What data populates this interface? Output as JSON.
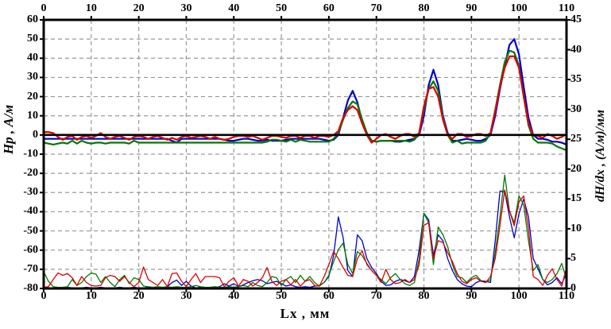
{
  "chart_data": {
    "type": "line",
    "title": "",
    "xlabel": "Lx , мм",
    "ylabel_left": "Hp , А/м",
    "ylabel_right": "dH/dx , (А/м)/мм",
    "background": "#ffffff",
    "frame_color": "#000000",
    "legend": "none",
    "x_axis": {
      "min": 0,
      "max": 110,
      "tick_step": 10,
      "ticks": [
        0,
        10,
        20,
        30,
        40,
        50,
        60,
        70,
        80,
        90,
        100,
        110
      ],
      "mirrored_top": true
    },
    "y_left": {
      "min": -80,
      "max": 60,
      "tick_step": 10,
      "ticks": [
        -80,
        -70,
        -60,
        -50,
        -40,
        -30,
        -20,
        -10,
        0,
        10,
        20,
        30,
        40,
        50,
        60
      ]
    },
    "y_right": {
      "min": 0,
      "max": 45,
      "tick_step": 5,
      "ticks": [
        0,
        5,
        10,
        15,
        20,
        25,
        30,
        35,
        40,
        45
      ]
    },
    "grid": {
      "color": "#999999",
      "dash": "5 4"
    },
    "zero_line": {
      "axis": "left",
      "value": 0,
      "color": "#000000"
    },
    "x_start": 0,
    "x_step": 1,
    "series": [
      {
        "name": "hp-blue",
        "axis": "left",
        "color": "#0000cc",
        "width": 2.2,
        "values": [
          -2,
          -2,
          -2,
          -2,
          -2,
          -2,
          -2,
          -2,
          -2,
          -2,
          -2,
          -2,
          -2,
          -2,
          -2,
          -2,
          -2,
          -2,
          -2,
          -2,
          -2,
          -2,
          -2,
          -2,
          -2,
          -2,
          -2,
          -3,
          -4,
          -2,
          -2,
          -2,
          -2,
          -2,
          -2,
          -2,
          -2,
          -2,
          -2.5,
          -3,
          -3,
          -2.5,
          -2,
          -2,
          -2.5,
          -3,
          -3,
          -2.5,
          -3,
          -3,
          -3,
          -2.5,
          -2,
          -2,
          -2,
          -2,
          -2,
          -2,
          -2,
          -2.5,
          -3,
          -2.5,
          0,
          9,
          18,
          23,
          17,
          7,
          1,
          -3,
          -3.5,
          -3,
          -3,
          -3,
          -3.5,
          -3.5,
          -3,
          -2.5,
          -2,
          0,
          10,
          26,
          34,
          26,
          10,
          1,
          -3,
          -3,
          -2.5,
          -2,
          -2.5,
          -3,
          -3,
          -2,
          0,
          10,
          24,
          36,
          47,
          50,
          42,
          25,
          9,
          0,
          -2,
          -2,
          -2.5,
          -3.5,
          -3.5,
          -4,
          -5
        ]
      },
      {
        "name": "hp-green",
        "axis": "left",
        "color": "#007a00",
        "width": 2.2,
        "values": [
          -4,
          -4.5,
          -5,
          -4.5,
          -4,
          -4.5,
          -3,
          -4.5,
          -3,
          -4,
          -4.5,
          -4,
          -4,
          -4.5,
          -4,
          -4,
          -4,
          -4,
          -4.5,
          -3,
          -4,
          -4,
          -4,
          -4,
          -4,
          -4,
          -4,
          -4,
          -4,
          -4,
          -4,
          -4,
          -4,
          -4,
          -4,
          -4,
          -4,
          -4,
          -4,
          -4,
          -4,
          -4,
          -4,
          -4,
          -4,
          -4,
          -4,
          -3.5,
          -2.5,
          -2.5,
          -3,
          -3.5,
          -2.5,
          -3.5,
          -2.5,
          -3,
          -3.5,
          -3.5,
          -3.5,
          -3.5,
          -3.5,
          -2,
          1,
          8,
          14,
          17.5,
          16,
          8,
          1,
          -3,
          -3.5,
          -3,
          -3,
          -3,
          -3,
          -3,
          -3,
          -3.5,
          -2.5,
          1,
          13,
          24,
          28,
          23,
          9,
          0,
          -4,
          -3,
          -4.5,
          -4,
          -4,
          -4,
          -4,
          -3,
          1,
          13,
          26,
          38,
          44,
          43,
          36,
          20,
          5,
          -2,
          -4,
          -4,
          -4,
          -4.5,
          -6,
          -7,
          -8
        ]
      },
      {
        "name": "hp-red",
        "axis": "left",
        "color": "#dd0000",
        "width": 2.2,
        "values": [
          1.5,
          1.5,
          1,
          -1,
          -2.5,
          -1,
          -0.5,
          -2.5,
          -1,
          -0.5,
          -1.5,
          -0.5,
          1,
          -1,
          -2,
          -1,
          -0.5,
          -1.5,
          -2.5,
          -1,
          -0.5,
          -1,
          -2,
          -1,
          -0.5,
          -1.5,
          -2.5,
          -1.5,
          -2.5,
          -1,
          -0.5,
          -1.5,
          -1,
          -0.5,
          -1,
          -2,
          -1,
          -2,
          -2.5,
          -2,
          -1,
          -0.5,
          -0.5,
          -1,
          -0.5,
          -1.5,
          -2.5,
          -1.5,
          -0.5,
          -0.5,
          -1,
          -1.5,
          -0.5,
          -0.5,
          -1.5,
          -0.5,
          -0.5,
          -1.5,
          -0.5,
          -0.5,
          -1,
          0,
          2,
          9,
          13,
          15,
          13,
          6,
          0,
          -4,
          -2,
          0,
          0.5,
          -1,
          -2,
          -0.5,
          0.5,
          0.5,
          -1,
          1,
          15,
          24,
          25,
          20,
          8,
          0,
          -2,
          0.5,
          0.5,
          -1,
          -0.5,
          0.5,
          0.5,
          -0.5,
          1,
          12,
          25,
          35,
          41,
          41,
          35,
          20,
          6,
          0,
          -0.5,
          -1.5,
          0.5,
          -0.5,
          -2,
          -1,
          0.5
        ]
      },
      {
        "name": "dhdx-blue",
        "axis": "right",
        "color": "#0000cc",
        "width": 1.3,
        "values": [
          0.2,
          0.1,
          0.1,
          0.1,
          0.1,
          0.2,
          0.1,
          0.1,
          0.1,
          0.2,
          0.1,
          0.1,
          0.2,
          0.1,
          0.1,
          0.1,
          0.2,
          0.1,
          0.1,
          0.2,
          0.1,
          0.1,
          0.2,
          0.1,
          0.1,
          0.1,
          0.3,
          1,
          1.4,
          0.5,
          1.2,
          0.4,
          0.1,
          0.2,
          0.1,
          0.2,
          0.1,
          0.3,
          0.8,
          0.4,
          0.8,
          0.3,
          0.6,
          1,
          1.3,
          1.5,
          1.3,
          0.8,
          1,
          1.2,
          0.8,
          0.4,
          0.6,
          0.3,
          0.2,
          0.3,
          0.2,
          0.4,
          0.5,
          1,
          2,
          5.5,
          12,
          8.5,
          3,
          2,
          9,
          8,
          5,
          3.5,
          2.5,
          1.2,
          0.5,
          0.6,
          1.2,
          1.5,
          1.3,
          1,
          2,
          6.5,
          12.6,
          11.5,
          5.5,
          9,
          8,
          5,
          3,
          1.5,
          0.8,
          0.4,
          0.3,
          1,
          1.3,
          1.2,
          1,
          8,
          16.3,
          16.3,
          12,
          8.5,
          12.5,
          15,
          12,
          5,
          3.3,
          1.5,
          0.6,
          1,
          1.8,
          0.8,
          2.5
        ]
      },
      {
        "name": "dhdx-green",
        "axis": "right",
        "color": "#007a00",
        "width": 1.3,
        "values": [
          2.8,
          1.2,
          0.3,
          0.2,
          0.2,
          0.3,
          1.5,
          0.5,
          1,
          2,
          2.6,
          2.4,
          1,
          2,
          1,
          0.3,
          1.5,
          2.2,
          0.8,
          1.8,
          1.5,
          0.4,
          0.3,
          0.2,
          0.3,
          0.2,
          0.3,
          0.2,
          0.3,
          0.2,
          0.2,
          0.3,
          0.5,
          0.3,
          0.2,
          0.2,
          0.3,
          0.2,
          0.2,
          0.3,
          0.2,
          0.3,
          0.5,
          0.3,
          1,
          0.5,
          0.3,
          1,
          2,
          1.8,
          0.5,
          1.5,
          2,
          1,
          2.2,
          1.2,
          2,
          1,
          0.4,
          1,
          2.2,
          4.5,
          6.5,
          7.6,
          4,
          2.5,
          6.2,
          5.5,
          4.2,
          3,
          2.2,
          1.5,
          0.8,
          1.8,
          2.5,
          1.5,
          0.8,
          0.5,
          1,
          5,
          12.6,
          11,
          4,
          10.3,
          9,
          7,
          4,
          2,
          1.8,
          1,
          1.8,
          2.2,
          1.3,
          1,
          1.5,
          6,
          12,
          19,
          13,
          11,
          15.5,
          14,
          8,
          3,
          4,
          1.5,
          1,
          1.5,
          2.5,
          4.2,
          1.5
        ]
      },
      {
        "name": "dhdx-red",
        "axis": "right",
        "color": "#dd0000",
        "width": 1.3,
        "values": [
          0.2,
          0.3,
          1.5,
          2.6,
          2.2,
          2.5,
          1.8,
          0.5,
          2,
          1,
          0.5,
          0.4,
          0.5,
          1.8,
          2.2,
          2,
          1.2,
          2,
          1,
          0.3,
          1,
          3.6,
          1.5,
          1,
          0.5,
          1.5,
          0.3,
          2.5,
          2.6,
          1.2,
          0.3,
          1.5,
          2.5,
          1,
          2,
          2,
          2,
          1.8,
          0.3,
          1.2,
          1.8,
          0.4,
          1.5,
          1.2,
          0.4,
          1,
          1.8,
          3.5,
          1.2,
          0.5,
          1.2,
          1.5,
          0.6,
          1.5,
          0.4,
          1.2,
          1.5,
          0.5,
          0.4,
          2,
          4,
          6.2,
          5,
          3.5,
          2.2,
          2,
          5,
          6.3,
          4,
          3,
          2.2,
          1,
          3.2,
          1.5,
          0.8,
          1,
          1.5,
          1,
          1.5,
          4,
          10.6,
          11,
          5,
          8,
          7.7,
          6,
          4.5,
          2.5,
          1.2,
          0.8,
          1.5,
          1.8,
          1.2,
          1,
          2,
          5,
          10.5,
          16.5,
          13,
          10.5,
          14.5,
          15.5,
          10,
          2,
          1.5,
          0.5,
          2.2,
          3.3,
          1.5,
          0.4,
          3.5
        ]
      }
    ]
  }
}
